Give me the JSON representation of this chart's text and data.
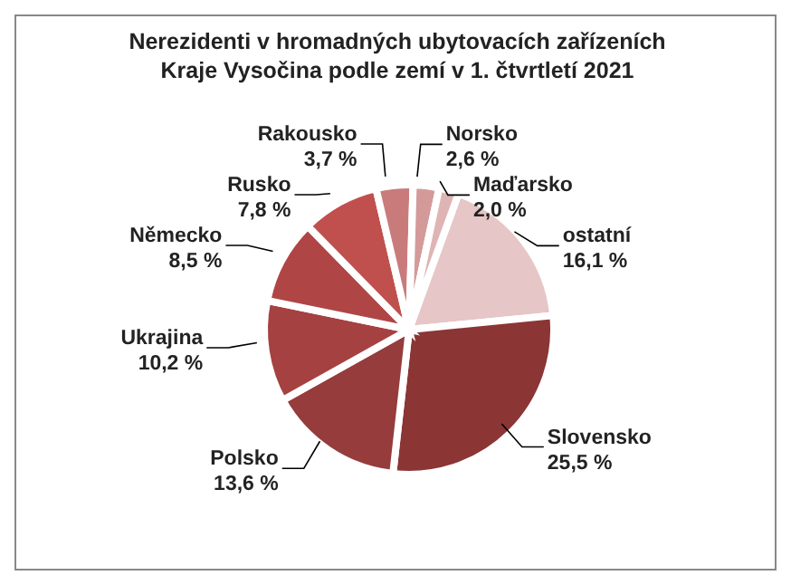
{
  "chart_data": {
    "type": "pie",
    "title": "Nerezidenti v hromadných ubytovacích zařízeních Kraje Vysočina podle zemí v 1. čtvrtletí 2021",
    "categories": [
      "ostatní",
      "Slovensko",
      "Polsko",
      "Ukrajina",
      "Německo",
      "Rusko",
      "Rakousko",
      "Norsko",
      "Maďarsko"
    ],
    "values": [
      16.1,
      25.5,
      13.6,
      10.2,
      8.5,
      7.8,
      3.7,
      2.6,
      2.0
    ],
    "value_labels": [
      "16,1 %",
      "25,5 %",
      "13,6 %",
      "10,2 %",
      "8,5 %",
      "7,8 %",
      "3,7 %",
      "2,6 %",
      "2,0 %"
    ],
    "colors": [
      "#e6c6c6",
      "#8b3535",
      "#963c3c",
      "#a64141",
      "#b04545",
      "#c0504d",
      "#c97b7b",
      "#d49a9a",
      "#dfb4b4"
    ],
    "legend": false
  }
}
